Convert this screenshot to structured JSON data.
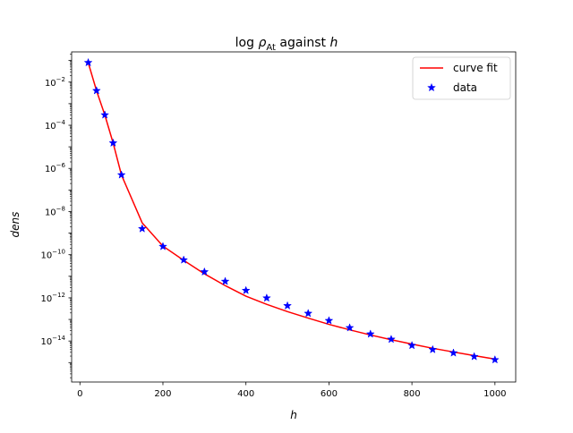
{
  "chart_data": {
    "type": "scatter",
    "title": {
      "prefix": "log ",
      "rho": "ρ",
      "sub": "At",
      "mid": " against ",
      "var": "h"
    },
    "xlabel": "h",
    "ylabel": "dens",
    "xlim": [
      -20,
      1050
    ],
    "ylim_log10": [
      -15.9,
      -0.6
    ],
    "y_scale": "log",
    "x_ticks": [
      0,
      200,
      400,
      600,
      800,
      1000
    ],
    "x_tick_labels": [
      "0",
      "200",
      "400",
      "600",
      "800",
      "1000"
    ],
    "y_ticks_log10": [
      -14,
      -12,
      -10,
      -8,
      -6,
      -4,
      -2
    ],
    "y_tick_labels": [
      {
        "base": "10",
        "exp": "−14"
      },
      {
        "base": "10",
        "exp": "−12"
      },
      {
        "base": "10",
        "exp": "−10"
      },
      {
        "base": "10",
        "exp": "−8"
      },
      {
        "base": "10",
        "exp": "−6"
      },
      {
        "base": "10",
        "exp": "−4"
      },
      {
        "base": "10",
        "exp": "−2"
      }
    ],
    "legend_position": "top-right",
    "series": [
      {
        "name": "curve fit",
        "kind": "line",
        "color": "#ff0000",
        "x": [
          20,
          40,
          60,
          80,
          100,
          150,
          200,
          250,
          300,
          350,
          400,
          450,
          500,
          550,
          600,
          650,
          700,
          750,
          800,
          850,
          900,
          950,
          1000
        ],
        "y": [
          0.08,
          0.004,
          0.0003,
          1.5e-05,
          5e-07,
          3e-09,
          2.5e-10,
          5.5e-11,
          1.3e-11,
          3.7e-12,
          1.2e-12,
          5e-13,
          2.3e-13,
          1.15e-13,
          5.9e-14,
          3.3e-14,
          1.9e-14,
          1.15e-14,
          7.2e-15,
          4.6e-15,
          3.1e-15,
          2.1e-15,
          1.45e-15
        ]
      },
      {
        "name": "data",
        "kind": "marker",
        "marker": "star",
        "color": "#0000ff",
        "x": [
          20,
          40,
          60,
          80,
          100,
          150,
          200,
          250,
          300,
          350,
          400,
          450,
          500,
          550,
          600,
          650,
          700,
          750,
          800,
          850,
          900,
          950,
          1000
        ],
        "y": [
          0.08,
          0.004,
          0.0003,
          1.5e-05,
          5e-07,
          1.6e-09,
          2.4e-10,
          5.7e-11,
          1.6e-11,
          5.8e-12,
          2.2e-12,
          9.8e-13,
          4.3e-13,
          1.9e-13,
          8.8e-14,
          4.1e-14,
          2.1e-14,
          1.2e-14,
          6.2e-15,
          4e-15,
          2.8e-15,
          1.9e-15,
          1.35e-15
        ]
      }
    ]
  }
}
